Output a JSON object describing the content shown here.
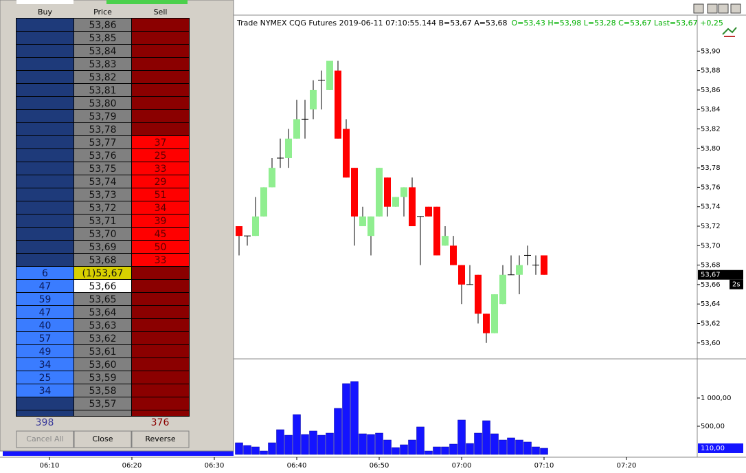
{
  "dom": {
    "columns": [
      "Buy",
      "Price",
      "Sell"
    ],
    "rows": [
      {
        "price": "53,86"
      },
      {
        "price": "53,85"
      },
      {
        "price": "53,84"
      },
      {
        "price": "53,83"
      },
      {
        "price": "53,82"
      },
      {
        "price": "53,81"
      },
      {
        "price": "53,80"
      },
      {
        "price": "53,79"
      },
      {
        "price": "53,78"
      },
      {
        "price": "53,77",
        "sell": 37
      },
      {
        "price": "53,76",
        "sell": 25
      },
      {
        "price": "53,75",
        "sell": 33
      },
      {
        "price": "53,74",
        "sell": 29
      },
      {
        "price": "53,73",
        "sell": 51
      },
      {
        "price": "53,72",
        "sell": 34
      },
      {
        "price": "53,71",
        "sell": 39
      },
      {
        "price": "53,70",
        "sell": 45
      },
      {
        "price": "53,69",
        "sell": 50
      },
      {
        "price": "53,68",
        "sell": 33
      },
      {
        "price": "(1)53,67",
        "buy": 6,
        "color": "#d8d000"
      },
      {
        "price": "53,66",
        "buy": 47,
        "color": "#ffffff"
      },
      {
        "price": "53,65",
        "buy": 59
      },
      {
        "price": "53,64",
        "buy": 47
      },
      {
        "price": "53,63",
        "buy": 40
      },
      {
        "price": "53,62",
        "buy": 57
      },
      {
        "price": "53,61",
        "buy": 49
      },
      {
        "price": "53,60",
        "buy": 34
      },
      {
        "price": "53,59",
        "buy": 25
      },
      {
        "price": "53,58",
        "buy": 34
      },
      {
        "price": "53,57"
      }
    ],
    "total_buy": 398,
    "total_sell": 376,
    "buttons": [
      "Cancel All",
      "Close",
      "Reverse"
    ]
  },
  "chart_data": [
    {
      "type": "candlestick",
      "title": "Trade  NYMEX  CQG  Futures  2019-06-11  07:10:55.144  B=53,67  A=53,68",
      "subtitle": "O=53,43  H=53,98  L=53,28  C=53,67  Last=53,67  +0,25",
      "x": [
        "06:33",
        "06:34",
        "06:35",
        "06:36",
        "06:37",
        "06:38",
        "06:39",
        "06:40",
        "06:41",
        "06:42",
        "06:43",
        "06:44",
        "06:45",
        "06:46",
        "06:47",
        "06:48",
        "06:49",
        "06:50",
        "06:51",
        "06:52",
        "06:53",
        "06:54",
        "06:55",
        "06:56",
        "06:57",
        "06:58",
        "06:59",
        "07:00",
        "07:01",
        "07:02",
        "07:03",
        "07:04",
        "07:05",
        "07:06",
        "07:07",
        "07:08",
        "07:09",
        "07:10"
      ],
      "open": [
        53.72,
        53.71,
        53.71,
        53.73,
        53.76,
        53.79,
        53.79,
        53.81,
        53.83,
        53.84,
        53.87,
        53.86,
        53.88,
        53.82,
        53.78,
        53.72,
        53.71,
        53.73,
        53.77,
        53.74,
        53.75,
        53.76,
        53.73,
        53.74,
        53.74,
        53.7,
        53.7,
        53.68,
        53.66,
        53.67,
        53.63,
        53.61,
        53.64,
        53.67,
        53.67,
        53.69,
        53.68,
        53.69
      ],
      "high": [
        53.72,
        53.71,
        53.75,
        53.76,
        53.79,
        53.81,
        53.82,
        53.85,
        53.85,
        53.87,
        53.88,
        53.89,
        53.89,
        53.83,
        53.78,
        53.74,
        53.73,
        53.78,
        53.77,
        53.75,
        53.76,
        53.77,
        53.73,
        53.74,
        53.74,
        53.72,
        53.71,
        53.68,
        53.68,
        53.67,
        53.63,
        53.65,
        53.68,
        53.69,
        53.69,
        53.7,
        53.69,
        53.69
      ],
      "low": [
        53.69,
        53.7,
        53.71,
        53.73,
        53.76,
        53.78,
        53.78,
        53.81,
        53.81,
        53.83,
        53.84,
        53.86,
        53.81,
        53.77,
        53.7,
        53.72,
        53.69,
        53.73,
        53.73,
        53.74,
        53.73,
        53.72,
        53.68,
        53.73,
        53.69,
        53.7,
        53.68,
        53.64,
        53.66,
        53.62,
        53.6,
        53.61,
        53.64,
        53.67,
        53.65,
        53.68,
        53.67,
        53.67
      ],
      "close": [
        53.71,
        53.71,
        53.73,
        53.76,
        53.78,
        53.79,
        53.81,
        53.83,
        53.83,
        53.86,
        53.87,
        53.89,
        53.81,
        53.77,
        53.73,
        53.73,
        53.73,
        53.78,
        53.74,
        53.75,
        53.76,
        53.72,
        53.73,
        53.73,
        53.69,
        53.71,
        53.68,
        53.66,
        53.66,
        53.63,
        53.61,
        53.65,
        53.67,
        53.67,
        53.68,
        53.69,
        53.68,
        53.67
      ],
      "up_color": "#90ee90",
      "down_color": "#ff0000",
      "xlim": [
        "06:04",
        "07:28"
      ],
      "ylim": [
        53.585,
        53.937
      ],
      "yticks": [
        {
          "value": 53.6,
          "label": "53,60"
        },
        {
          "value": 53.62,
          "label": "53,62"
        },
        {
          "value": 53.64,
          "label": "53,64"
        },
        {
          "value": 53.66,
          "label": "53,66"
        },
        {
          "value": 53.68,
          "label": "53,68"
        },
        {
          "value": 53.7,
          "label": "53,70"
        },
        {
          "value": 53.72,
          "label": "53,72"
        },
        {
          "value": 53.74,
          "label": "53,74"
        },
        {
          "value": 53.76,
          "label": "53,76"
        },
        {
          "value": 53.78,
          "label": "53,78"
        },
        {
          "value": 53.8,
          "label": "53,80"
        },
        {
          "value": 53.82,
          "label": "53,82"
        },
        {
          "value": 53.84,
          "label": "53,84"
        },
        {
          "value": 53.86,
          "label": "53,86"
        },
        {
          "value": 53.88,
          "label": "53,88"
        },
        {
          "value": 53.9,
          "label": "53,90"
        }
      ],
      "last_price": {
        "value": 53.67,
        "label": "53,67"
      },
      "last_age": "2s"
    },
    {
      "type": "bar",
      "color": "#1414ff",
      "x": [
        "06:33",
        "06:34",
        "06:35",
        "06:36",
        "06:37",
        "06:38",
        "06:39",
        "06:40",
        "06:41",
        "06:42",
        "06:43",
        "06:44",
        "06:45",
        "06:46",
        "06:47",
        "06:48",
        "06:49",
        "06:50",
        "06:51",
        "06:52",
        "06:53",
        "06:54",
        "06:55",
        "06:56",
        "06:57",
        "06:58",
        "06:59",
        "07:00",
        "07:01",
        "07:02",
        "07:03",
        "07:04",
        "07:05",
        "07:06",
        "07:07",
        "07:08",
        "07:09",
        "07:10"
      ],
      "values": [
        207,
        159,
        134,
        61,
        207,
        439,
        341,
        707,
        354,
        415,
        341,
        378,
        817,
        1256,
        1293,
        366,
        354,
        378,
        256,
        122,
        171,
        256,
        488,
        61,
        134,
        134,
        183,
        610,
        195,
        378,
        598,
        366,
        256,
        293,
        256,
        220,
        134,
        110
      ],
      "xlim": [
        "06:04",
        "07:28"
      ],
      "ylim": [
        0,
        1670
      ],
      "xticks": [
        "06:10",
        "06:20",
        "06:30",
        "06:40",
        "06:50",
        "07:00",
        "07:10",
        "07:20"
      ],
      "yticks": [
        {
          "value": 500,
          "label": "500,00"
        },
        {
          "value": 1000,
          "label": "1 000,00"
        }
      ],
      "last_value": {
        "value": 110,
        "label": "110,00"
      }
    }
  ]
}
